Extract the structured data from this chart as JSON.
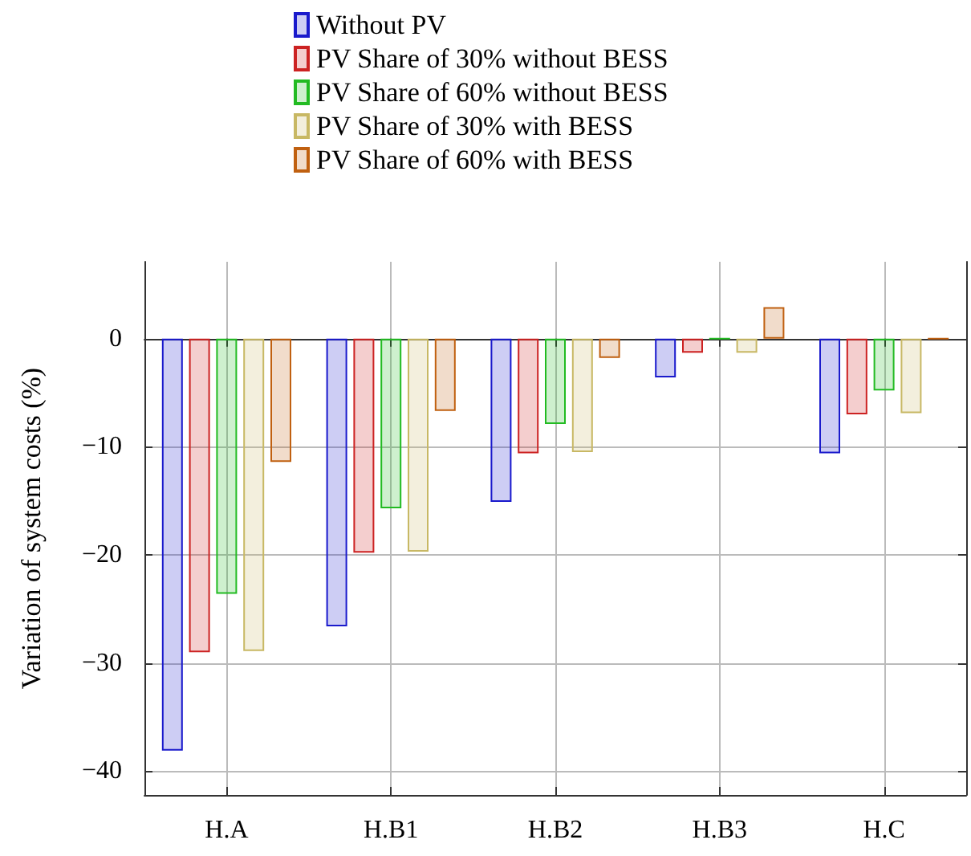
{
  "chart_data": {
    "type": "bar",
    "ylabel": "Variation of system costs (%)",
    "categories": [
      "H.A",
      "H.B1",
      "H.B2",
      "H.B3",
      "H.C"
    ],
    "series": [
      {
        "name": "Without PV",
        "color": "#1a1acc",
        "values": [
          -38.1,
          -26.6,
          -15.1,
          -3.6,
          -10.6
        ]
      },
      {
        "name": "PV Share of 30% without BESS",
        "color": "#cc2222",
        "values": [
          -29.0,
          -19.8,
          -10.6,
          -1.3,
          -7.0
        ]
      },
      {
        "name": "PV Share of 60% without BESS",
        "color": "#22bb22",
        "values": [
          -23.6,
          -15.7,
          -7.9,
          0,
          -4.8
        ]
      },
      {
        "name": "PV Share of 30% with BESS",
        "color": "#c8b864",
        "values": [
          -28.9,
          -19.7,
          -10.5,
          -1.3,
          -6.9
        ]
      },
      {
        "name": "PV Share of 60% with BESS",
        "color": "#c06010",
        "values": [
          -11.4,
          -6.7,
          -1.8,
          2.9,
          0
        ]
      }
    ],
    "ylim": [
      -42.2,
      7.1
    ],
    "yticks": [
      -40,
      -30,
      -20,
      -10,
      0
    ],
    "grid": true,
    "legend": "top"
  }
}
